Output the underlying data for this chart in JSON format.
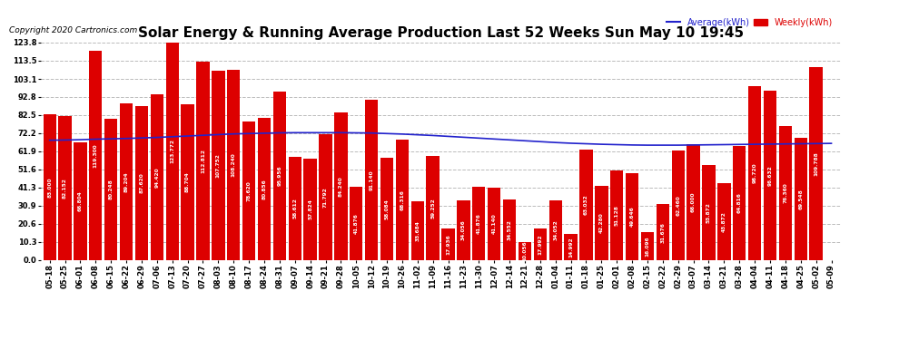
{
  "title": "Solar Energy & Running Average Production Last 52 Weeks Sun May 10 19:45",
  "copyright": "Copyright 2020 Cartronics.com",
  "legend_avg": "Average(kWh)",
  "legend_weekly": "Weekly(kWh)",
  "categories": [
    "05-18",
    "05-25",
    "06-01",
    "06-08",
    "06-15",
    "06-22",
    "06-29",
    "07-06",
    "07-13",
    "07-20",
    "07-27",
    "08-03",
    "08-10",
    "08-17",
    "08-24",
    "08-31",
    "09-07",
    "09-14",
    "09-21",
    "09-28",
    "10-05",
    "10-12",
    "10-19",
    "10-26",
    "11-02",
    "11-09",
    "11-16",
    "11-23",
    "11-30",
    "12-07",
    "12-14",
    "12-21",
    "12-28",
    "01-04",
    "01-11",
    "01-18",
    "01-25",
    "02-01",
    "02-08",
    "02-15",
    "02-22",
    "02-29",
    "03-07",
    "03-14",
    "03-21",
    "03-28",
    "04-04",
    "04-11",
    "04-18",
    "04-25",
    "05-02",
    "05-09"
  ],
  "weekly_values": [
    83.0,
    82.152,
    66.804,
    119.3,
    80.248,
    89.204,
    87.62,
    94.42,
    123.772,
    88.704,
    112.812,
    107.752,
    108.24,
    78.62,
    80.856,
    95.956,
    58.612,
    57.824,
    71.792,
    84.24,
    41.876,
    91.14,
    58.084,
    68.316,
    33.684,
    59.252,
    17.936,
    34.056,
    41.876,
    41.14,
    34.552,
    10.056,
    17.992,
    34.052,
    14.992,
    63.032,
    42.28,
    51.128,
    49.646,
    16.096,
    31.676,
    62.46,
    66.0,
    53.872,
    43.872,
    64.816,
    98.72,
    96.632,
    76.36,
    69.548,
    109.788,
    0.0
  ],
  "avg_values": [
    68.2,
    68.3,
    68.5,
    68.8,
    69.0,
    69.2,
    69.5,
    69.8,
    70.2,
    70.6,
    71.0,
    71.4,
    71.8,
    72.0,
    72.2,
    72.4,
    72.5,
    72.5,
    72.5,
    72.5,
    72.4,
    72.3,
    72.0,
    71.7,
    71.3,
    70.9,
    70.4,
    69.9,
    69.4,
    68.9,
    68.4,
    67.9,
    67.4,
    66.9,
    66.5,
    66.2,
    65.9,
    65.7,
    65.5,
    65.4,
    65.4,
    65.4,
    65.5,
    65.6,
    65.7,
    65.8,
    65.9,
    66.0,
    66.1,
    66.2,
    66.3,
    66.4
  ],
  "bar_color": "#dd0000",
  "avg_line_color": "#2222cc",
  "background_color": "#ffffff",
  "grid_color": "#bbbbbb",
  "yticks": [
    0.0,
    10.3,
    20.6,
    30.9,
    41.3,
    51.6,
    61.9,
    72.2,
    82.5,
    92.8,
    103.1,
    113.5,
    123.8
  ],
  "ylim": [
    0.0,
    123.8
  ],
  "title_fontsize": 11,
  "tick_fontsize": 6,
  "bar_label_fontsize": 4.2
}
